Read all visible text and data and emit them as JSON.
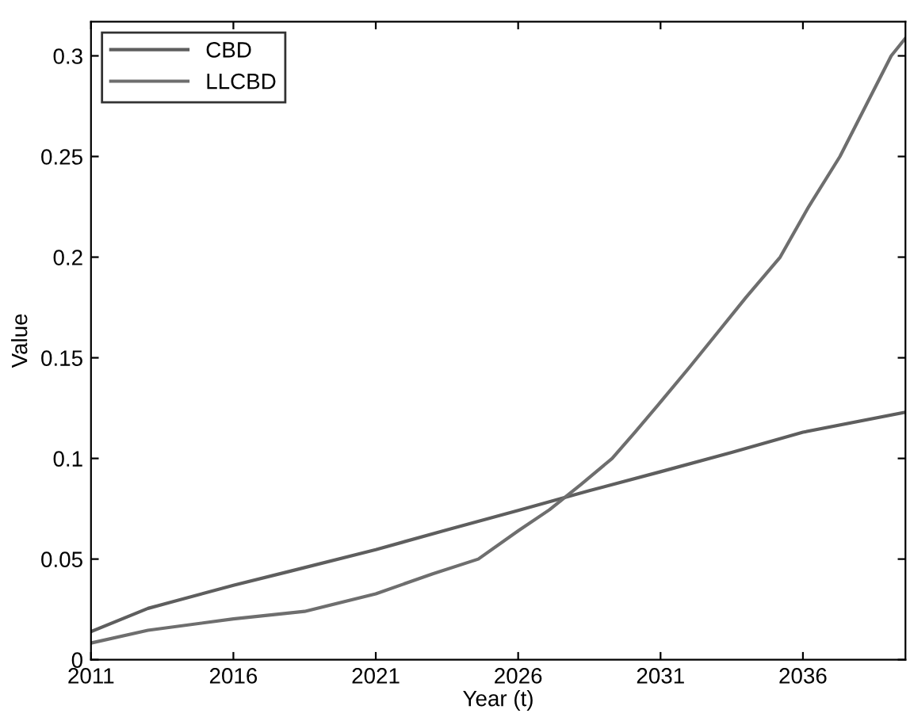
{
  "chart_data": {
    "type": "line",
    "xlabel": "Year (t)",
    "ylabel": "Value",
    "xlim": [
      2011,
      2039.6
    ],
    "ylim": [
      0,
      0.317
    ],
    "xticks": [
      2011,
      2016,
      2021,
      2026,
      2031,
      2036
    ],
    "yticks": [
      0,
      0.05,
      0.1,
      0.15,
      0.2,
      0.25,
      0.3
    ],
    "grid": false,
    "legend": "top left",
    "line_style": "solid",
    "marker": "none",
    "series": [
      {
        "name": "CBD",
        "color": "#5e5e5e",
        "x": [
          2011,
          2013,
          2016,
          2018,
          2021,
          2023.5,
          2026,
          2028.5,
          2031,
          2033.5,
          2036,
          2039.6
        ],
        "values": [
          0.014,
          0.0255,
          0.037,
          0.044,
          0.0547,
          0.0645,
          0.0742,
          0.084,
          0.0934,
          0.103,
          0.113,
          0.123
        ]
      },
      {
        "name": "LLCBD",
        "color": "#6e6e6e",
        "x": [
          2011,
          2013,
          2016,
          2018.5,
          2021,
          2023,
          2024.6,
          2026,
          2027.1,
          2028.2,
          2029.3,
          2030.1,
          2031,
          2032,
          2032.8,
          2034,
          2035.2,
          2036.2,
          2037.3,
          2038.2,
          2039.1,
          2039.6
        ],
        "values": [
          0.0083,
          0.0146,
          0.0203,
          0.024,
          0.0327,
          0.0427,
          0.05,
          0.064,
          0.0745,
          0.087,
          0.1,
          0.113,
          0.128,
          0.145,
          0.159,
          0.18,
          0.2,
          0.225,
          0.25,
          0.275,
          0.3,
          0.3088
        ]
      }
    ]
  }
}
